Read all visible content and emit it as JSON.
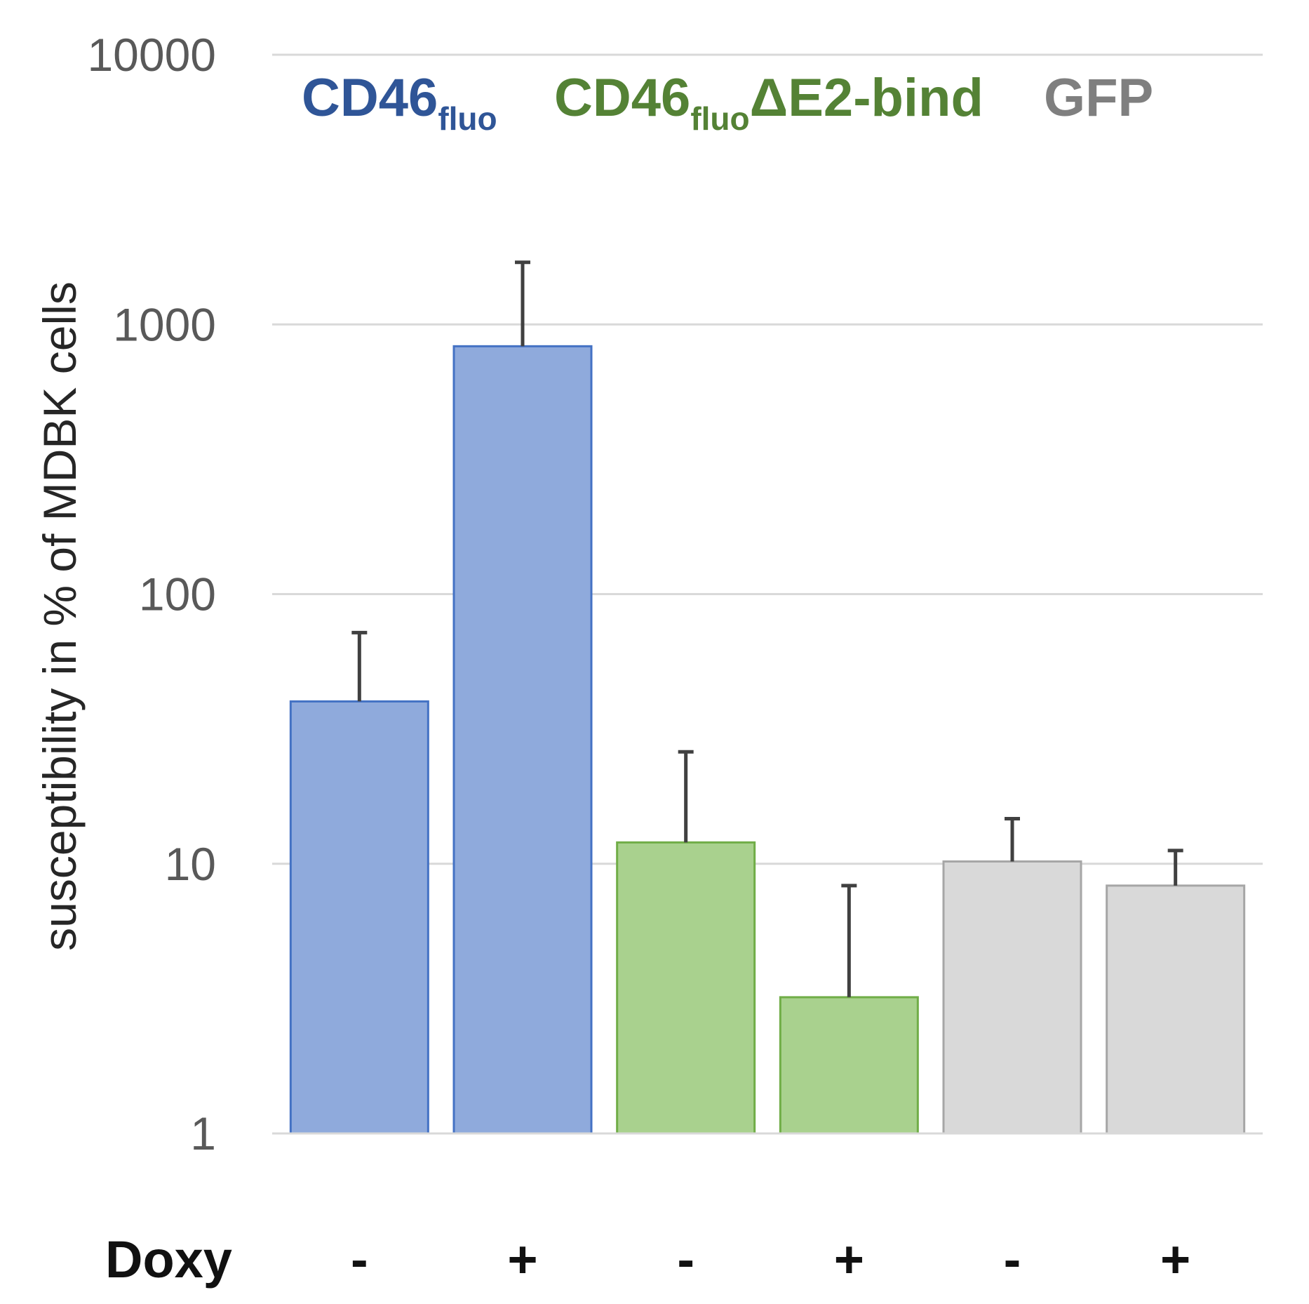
{
  "chart_data": {
    "type": "bar",
    "scale": "log",
    "ylabel": "susceptibility in % of MDBK cells",
    "ylim": [
      1,
      10000
    ],
    "yticks": [
      1,
      10,
      100,
      1000,
      10000
    ],
    "ytick_labels": [
      "1",
      "10",
      "100",
      "1000",
      "10000"
    ],
    "grid": true,
    "row_label": "Doxy",
    "categories": [
      "-",
      "+",
      "-",
      "+",
      "-",
      "+"
    ],
    "legend": [
      {
        "text": "CD46",
        "sub": "fluo",
        "suffix": "",
        "color": "#2f5597"
      },
      {
        "text": "CD46",
        "sub": "fluo",
        "suffix": "ΔE2-bind",
        "color": "#548235"
      },
      {
        "text": "GFP",
        "sub": "",
        "suffix": "",
        "color": "#7f7f7f"
      }
    ],
    "bars": [
      {
        "group": "CD46fluo",
        "doxy": "-",
        "value": 40,
        "error_upper": 72,
        "fill": "#8faadc",
        "stroke": "#4472c4"
      },
      {
        "group": "CD46fluo",
        "doxy": "+",
        "value": 830,
        "error_upper": 1700,
        "fill": "#8faadc",
        "stroke": "#4472c4"
      },
      {
        "group": "CD46fluoΔE2-bind",
        "doxy": "-",
        "value": 12,
        "error_upper": 26,
        "fill": "#a9d18e",
        "stroke": "#70ad47"
      },
      {
        "group": "CD46fluoΔE2-bind",
        "doxy": "+",
        "value": 3.2,
        "error_upper": 8.3,
        "fill": "#a9d18e",
        "stroke": "#70ad47"
      },
      {
        "group": "GFP",
        "doxy": "-",
        "value": 10.2,
        "error_upper": 14.7,
        "fill": "#d9d9d9",
        "stroke": "#a6a6a6"
      },
      {
        "group": "GFP",
        "doxy": "+",
        "value": 8.3,
        "error_upper": 11.2,
        "fill": "#d9d9d9",
        "stroke": "#a6a6a6"
      }
    ]
  }
}
